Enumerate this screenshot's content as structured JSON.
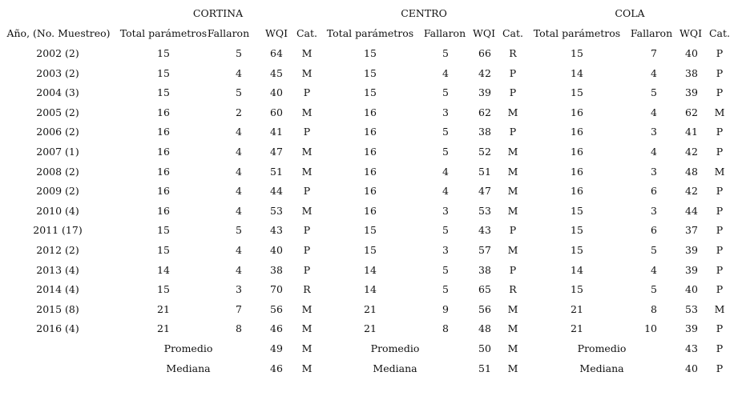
{
  "sections": [
    "CORTINA",
    "CENTRO",
    "COLA"
  ],
  "year_header": "Año, (No. Muestreo)",
  "column_headers": [
    "Total parámetros",
    "Fallaron",
    "WQI",
    "Cat."
  ],
  "rows": [
    {
      "year": "2002 (2)",
      "cortina": [
        "15",
        "5",
        "64",
        "M"
      ],
      "centro": [
        "15",
        "5",
        "66",
        "R"
      ],
      "cola": [
        "15",
        "7",
        "40",
        "P"
      ]
    },
    {
      "year": "2003 (2)",
      "cortina": [
        "15",
        "4",
        "45",
        "M"
      ],
      "centro": [
        "15",
        "4",
        "42",
        "P"
      ],
      "cola": [
        "14",
        "4",
        "38",
        "P"
      ]
    },
    {
      "year": "2004 (3)",
      "cortina": [
        "15",
        "5",
        "40",
        "P"
      ],
      "centro": [
        "15",
        "5",
        "39",
        "P"
      ],
      "cola": [
        "15",
        "5",
        "39",
        "P"
      ]
    },
    {
      "year": "2005 (2)",
      "cortina": [
        "16",
        "2",
        "60",
        "M"
      ],
      "centro": [
        "16",
        "3",
        "62",
        "M"
      ],
      "cola": [
        "16",
        "4",
        "62",
        "M"
      ]
    },
    {
      "year": "2006 (2)",
      "cortina": [
        "16",
        "4",
        "41",
        "P"
      ],
      "centro": [
        "16",
        "5",
        "38",
        "P"
      ],
      "cola": [
        "16",
        "3",
        "41",
        "P"
      ]
    },
    {
      "year": "2007 (1)",
      "cortina": [
        "16",
        "4",
        "47",
        "M"
      ],
      "centro": [
        "16",
        "5",
        "52",
        "M"
      ],
      "cola": [
        "16",
        "4",
        "42",
        "P"
      ]
    },
    {
      "year": "2008 (2)",
      "cortina": [
        "16",
        "4",
        "51",
        "M"
      ],
      "centro": [
        "16",
        "4",
        "51",
        "M"
      ],
      "cola": [
        "16",
        "3",
        "48",
        "M"
      ]
    },
    {
      "year": "2009 (2)",
      "cortina": [
        "16",
        "4",
        "44",
        "P"
      ],
      "centro": [
        "16",
        "4",
        "47",
        "M"
      ],
      "cola": [
        "16",
        "6",
        "42",
        "P"
      ]
    },
    {
      "year": "2010 (4)",
      "cortina": [
        "16",
        "4",
        "53",
        "M"
      ],
      "centro": [
        "16",
        "3",
        "53",
        "M"
      ],
      "cola": [
        "15",
        "3",
        "44",
        "P"
      ]
    },
    {
      "year": "2011 (17)",
      "cortina": [
        "15",
        "5",
        "43",
        "P"
      ],
      "centro": [
        "15",
        "5",
        "43",
        "P"
      ],
      "cola": [
        "15",
        "6",
        "37",
        "P"
      ]
    },
    {
      "year": "2012 (2)",
      "cortina": [
        "15",
        "4",
        "40",
        "P"
      ],
      "centro": [
        "15",
        "3",
        "57",
        "M"
      ],
      "cola": [
        "15",
        "5",
        "39",
        "P"
      ]
    },
    {
      "year": "2013 (4)",
      "cortina": [
        "14",
        "4",
        "38",
        "P"
      ],
      "centro": [
        "14",
        "5",
        "38",
        "P"
      ],
      "cola": [
        "14",
        "4",
        "39",
        "P"
      ]
    },
    {
      "year": "2014 (4)",
      "cortina": [
        "15",
        "3",
        "70",
        "R"
      ],
      "centro": [
        "14",
        "5",
        "65",
        "R"
      ],
      "cola": [
        "15",
        "5",
        "40",
        "P"
      ]
    },
    {
      "year": "2015 (8)",
      "cortina": [
        "21",
        "7",
        "56",
        "M"
      ],
      "centro": [
        "21",
        "9",
        "56",
        "M"
      ],
      "cola": [
        "21",
        "8",
        "53",
        "M"
      ]
    },
    {
      "year": "2016 (4)",
      "cortina": [
        "21",
        "8",
        "46",
        "M"
      ],
      "centro": [
        "21",
        "8",
        "48",
        "M"
      ],
      "cola": [
        "21",
        "10",
        "39",
        "P"
      ]
    }
  ],
  "summary": [
    {
      "label": "Promedio",
      "cortina": [
        "49",
        "M"
      ],
      "centro": [
        "50",
        "M"
      ],
      "cola": [
        "43",
        "P"
      ]
    },
    {
      "label": "Mediana",
      "cortina": [
        "46",
        "M"
      ],
      "centro": [
        "51",
        "M"
      ],
      "cola": [
        "40",
        "P"
      ]
    }
  ]
}
